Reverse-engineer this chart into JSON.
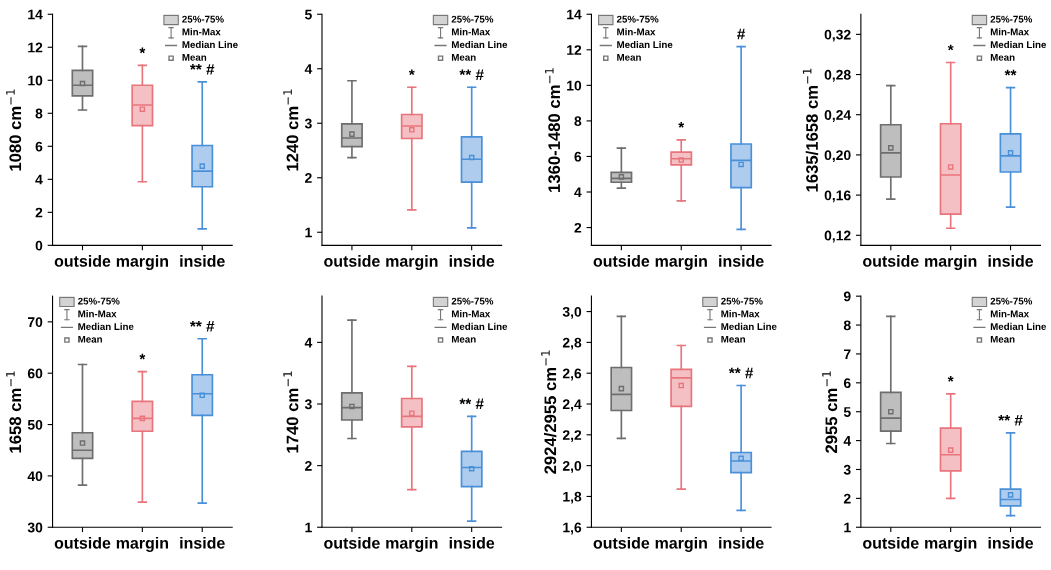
{
  "chart_data": [
    {
      "type": "box",
      "ylabel": "1080 cm$^{−1}$",
      "categories": [
        "outside",
        "margin",
        "inside"
      ],
      "colors": [
        "#6e6e6e",
        "#e8747c",
        "#4a90d9"
      ],
      "ylim": [
        0,
        14
      ],
      "yticks": [
        0,
        2,
        4,
        6,
        8,
        10,
        12,
        14
      ],
      "boxes": [
        {
          "low": 8.2,
          "q1": 9.05,
          "median": 9.7,
          "q3": 10.6,
          "high": 12.05,
          "mean": 9.8
        },
        {
          "low": 3.85,
          "q1": 7.25,
          "median": 8.5,
          "q3": 9.7,
          "high": 10.9,
          "mean": 8.25
        },
        {
          "low": 1.0,
          "q1": 3.55,
          "median": 4.5,
          "q3": 6.05,
          "high": 9.9,
          "mean": 4.8
        }
      ],
      "value_labels": [
        null,
        "*",
        "** #"
      ],
      "annotations": [
        "25%-75%",
        "Min-Max",
        "Median Line",
        "Mean"
      ]
    },
    {
      "type": "box",
      "ylabel": "1240 cm$^{−1}$",
      "categories": [
        "outside",
        "margin",
        "inside"
      ],
      "colors": [
        "#6e6e6e",
        "#e8747c",
        "#4a90d9"
      ],
      "ylim": [
        0.76,
        5
      ],
      "yticks": [
        1,
        2,
        3,
        4,
        5
      ],
      "boxes": [
        {
          "low": 2.37,
          "q1": 2.57,
          "median": 2.73,
          "q3": 2.99,
          "high": 3.78,
          "mean": 2.8
        },
        {
          "low": 1.41,
          "q1": 2.72,
          "median": 2.95,
          "q3": 3.16,
          "high": 3.66,
          "mean": 2.88
        },
        {
          "low": 1.08,
          "q1": 1.92,
          "median": 2.34,
          "q3": 2.75,
          "high": 3.66,
          "mean": 2.37
        }
      ],
      "value_labels": [
        null,
        "*",
        "** #"
      ],
      "annotations": [
        "25%-75%",
        "Min-Max",
        "Median Line",
        "Mean"
      ]
    },
    {
      "type": "box",
      "ylabel": "1360-1480 cm$^{−1}$",
      "categories": [
        "outside",
        "margin",
        "inside"
      ],
      "colors": [
        "#6e6e6e",
        "#e8747c",
        "#4a90d9"
      ],
      "ylim": [
        1,
        14
      ],
      "yticks": [
        2,
        4,
        6,
        8,
        10,
        12,
        14
      ],
      "boxes": [
        {
          "low": 4.22,
          "q1": 4.55,
          "median": 4.77,
          "q3": 5.1,
          "high": 6.47,
          "mean": 4.85
        },
        {
          "low": 3.5,
          "q1": 5.53,
          "median": 5.87,
          "q3": 6.24,
          "high": 6.93,
          "mean": 5.8
        },
        {
          "low": 1.9,
          "q1": 4.25,
          "median": 5.78,
          "q3": 6.7,
          "high": 12.18,
          "mean": 5.55
        }
      ],
      "value_labels": [
        null,
        "*",
        "#"
      ],
      "annotations": [
        "25%-75%",
        "Min-Max",
        "Median Line",
        "Mean"
      ]
    },
    {
      "type": "box",
      "ylabel": "1635/1658 cm$^{−1}$",
      "categories": [
        "outside",
        "margin",
        "inside"
      ],
      "colors": [
        "#6e6e6e",
        "#e8747c",
        "#4a90d9"
      ],
      "ylim": [
        0.11,
        0.34
      ],
      "yticks": [
        {
          "value": 0.12,
          "label": "0,12"
        },
        {
          "value": 0.16,
          "label": "0,16"
        },
        {
          "value": 0.2,
          "label": "0,20"
        },
        {
          "value": 0.24,
          "label": "0,24"
        },
        {
          "value": 0.28,
          "label": "0,28"
        },
        {
          "value": 0.32,
          "label": "0,32"
        }
      ],
      "boxes": [
        {
          "low": 0.156,
          "q1": 0.178,
          "median": 0.202,
          "q3": 0.23,
          "high": 0.269,
          "mean": 0.207
        },
        {
          "low": 0.127,
          "q1": 0.141,
          "median": 0.18,
          "q3": 0.231,
          "high": 0.292,
          "mean": 0.188
        },
        {
          "low": 0.148,
          "q1": 0.183,
          "median": 0.199,
          "q3": 0.221,
          "high": 0.267,
          "mean": 0.202
        }
      ],
      "value_labels": [
        null,
        "*",
        "**"
      ],
      "annotations": [
        "25%-75%",
        "Min-Max",
        "Median Line",
        "Mean"
      ]
    },
    {
      "type": "box",
      "ylabel": "1658 cm$^{−1}$",
      "categories": [
        "outside",
        "margin",
        "inside"
      ],
      "colors": [
        "#6e6e6e",
        "#e8747c",
        "#4a90d9"
      ],
      "ylim": [
        30,
        75
      ],
      "yticks": [
        30,
        40,
        50,
        60,
        70
      ],
      "boxes": [
        {
          "low": 38.2,
          "q1": 43.4,
          "median": 45.0,
          "q3": 48.4,
          "high": 61.7,
          "mean": 46.4
        },
        {
          "low": 34.9,
          "q1": 48.7,
          "median": 51.2,
          "q3": 54.5,
          "high": 60.3,
          "mean": 51.2
        },
        {
          "low": 34.7,
          "q1": 51.8,
          "median": 56.0,
          "q3": 59.7,
          "high": 66.7,
          "mean": 55.7
        }
      ],
      "value_labels": [
        null,
        "*",
        "** #"
      ],
      "annotations": [
        "25%-75%",
        "Min-Max",
        "Median Line",
        "Mean"
      ]
    },
    {
      "type": "box",
      "ylabel": "1740 cm$^{−1}$",
      "categories": [
        "outside",
        "margin",
        "inside"
      ],
      "colors": [
        "#6e6e6e",
        "#e8747c",
        "#4a90d9"
      ],
      "ylim": [
        1,
        4.75
      ],
      "yticks": [
        1,
        2,
        3,
        4
      ],
      "boxes": [
        {
          "low": 2.44,
          "q1": 2.74,
          "median": 2.94,
          "q3": 3.18,
          "high": 4.36,
          "mean": 2.96
        },
        {
          "low": 1.61,
          "q1": 2.63,
          "median": 2.8,
          "q3": 3.09,
          "high": 3.61,
          "mean": 2.85
        },
        {
          "low": 1.1,
          "q1": 1.66,
          "median": 1.97,
          "q3": 2.23,
          "high": 2.8,
          "mean": 1.95
        }
      ],
      "value_labels": [
        null,
        null,
        "** #"
      ],
      "annotations": [
        "25%-75%",
        "Min-Max",
        "Median Line",
        "Mean"
      ]
    },
    {
      "type": "box",
      "ylabel": "2924/2955 cm$^{−1}$",
      "categories": [
        "outside",
        "margin",
        "inside"
      ],
      "colors": [
        "#6e6e6e",
        "#e8747c",
        "#4a90d9"
      ],
      "ylim": [
        1.6,
        3.1
      ],
      "yticks": [
        {
          "value": 1.6,
          "label": "1,6"
        },
        {
          "value": 1.8,
          "label": "1,8"
        },
        {
          "value": 2.0,
          "label": "2,0"
        },
        {
          "value": 2.2,
          "label": "2,2"
        },
        {
          "value": 2.4,
          "label": "2,4"
        },
        {
          "value": 2.6,
          "label": "2,6"
        },
        {
          "value": 2.8,
          "label": "2,8"
        },
        {
          "value": 3.0,
          "label": "3,0"
        }
      ],
      "boxes": [
        {
          "low": 2.177,
          "q1": 2.358,
          "median": 2.463,
          "q3": 2.637,
          "high": 2.969,
          "mean": 2.5
        },
        {
          "low": 1.848,
          "q1": 2.385,
          "median": 2.57,
          "q3": 2.625,
          "high": 2.78,
          "mean": 2.52
        },
        {
          "low": 1.71,
          "q1": 1.955,
          "median": 2.03,
          "q3": 2.085,
          "high": 2.52,
          "mean": 2.047
        }
      ],
      "value_labels": [
        null,
        null,
        "** #"
      ],
      "annotations": [
        "25%-75%",
        "Min-Max",
        "Median Line",
        "Mean"
      ]
    },
    {
      "type": "box",
      "ylabel": "2955 cm$^{−1}$",
      "categories": [
        "outside",
        "margin",
        "inside"
      ],
      "colors": [
        "#6e6e6e",
        "#e8747c",
        "#4a90d9"
      ],
      "ylim": [
        1,
        9
      ],
      "yticks": [
        1,
        2,
        3,
        4,
        5,
        6,
        7,
        8,
        9
      ],
      "boxes": [
        {
          "low": 3.9,
          "q1": 4.33,
          "median": 4.78,
          "q3": 5.67,
          "high": 8.3,
          "mean": 5.0
        },
        {
          "low": 2.0,
          "q1": 2.95,
          "median": 3.51,
          "q3": 4.43,
          "high": 5.62,
          "mean": 3.67
        },
        {
          "low": 1.4,
          "q1": 1.74,
          "median": 1.96,
          "q3": 2.32,
          "high": 4.27,
          "mean": 2.12
        }
      ],
      "value_labels": [
        null,
        "*",
        "** #"
      ],
      "annotations": [
        "25%-75%",
        "Min-Max",
        "Median Line",
        "Mean"
      ]
    }
  ]
}
